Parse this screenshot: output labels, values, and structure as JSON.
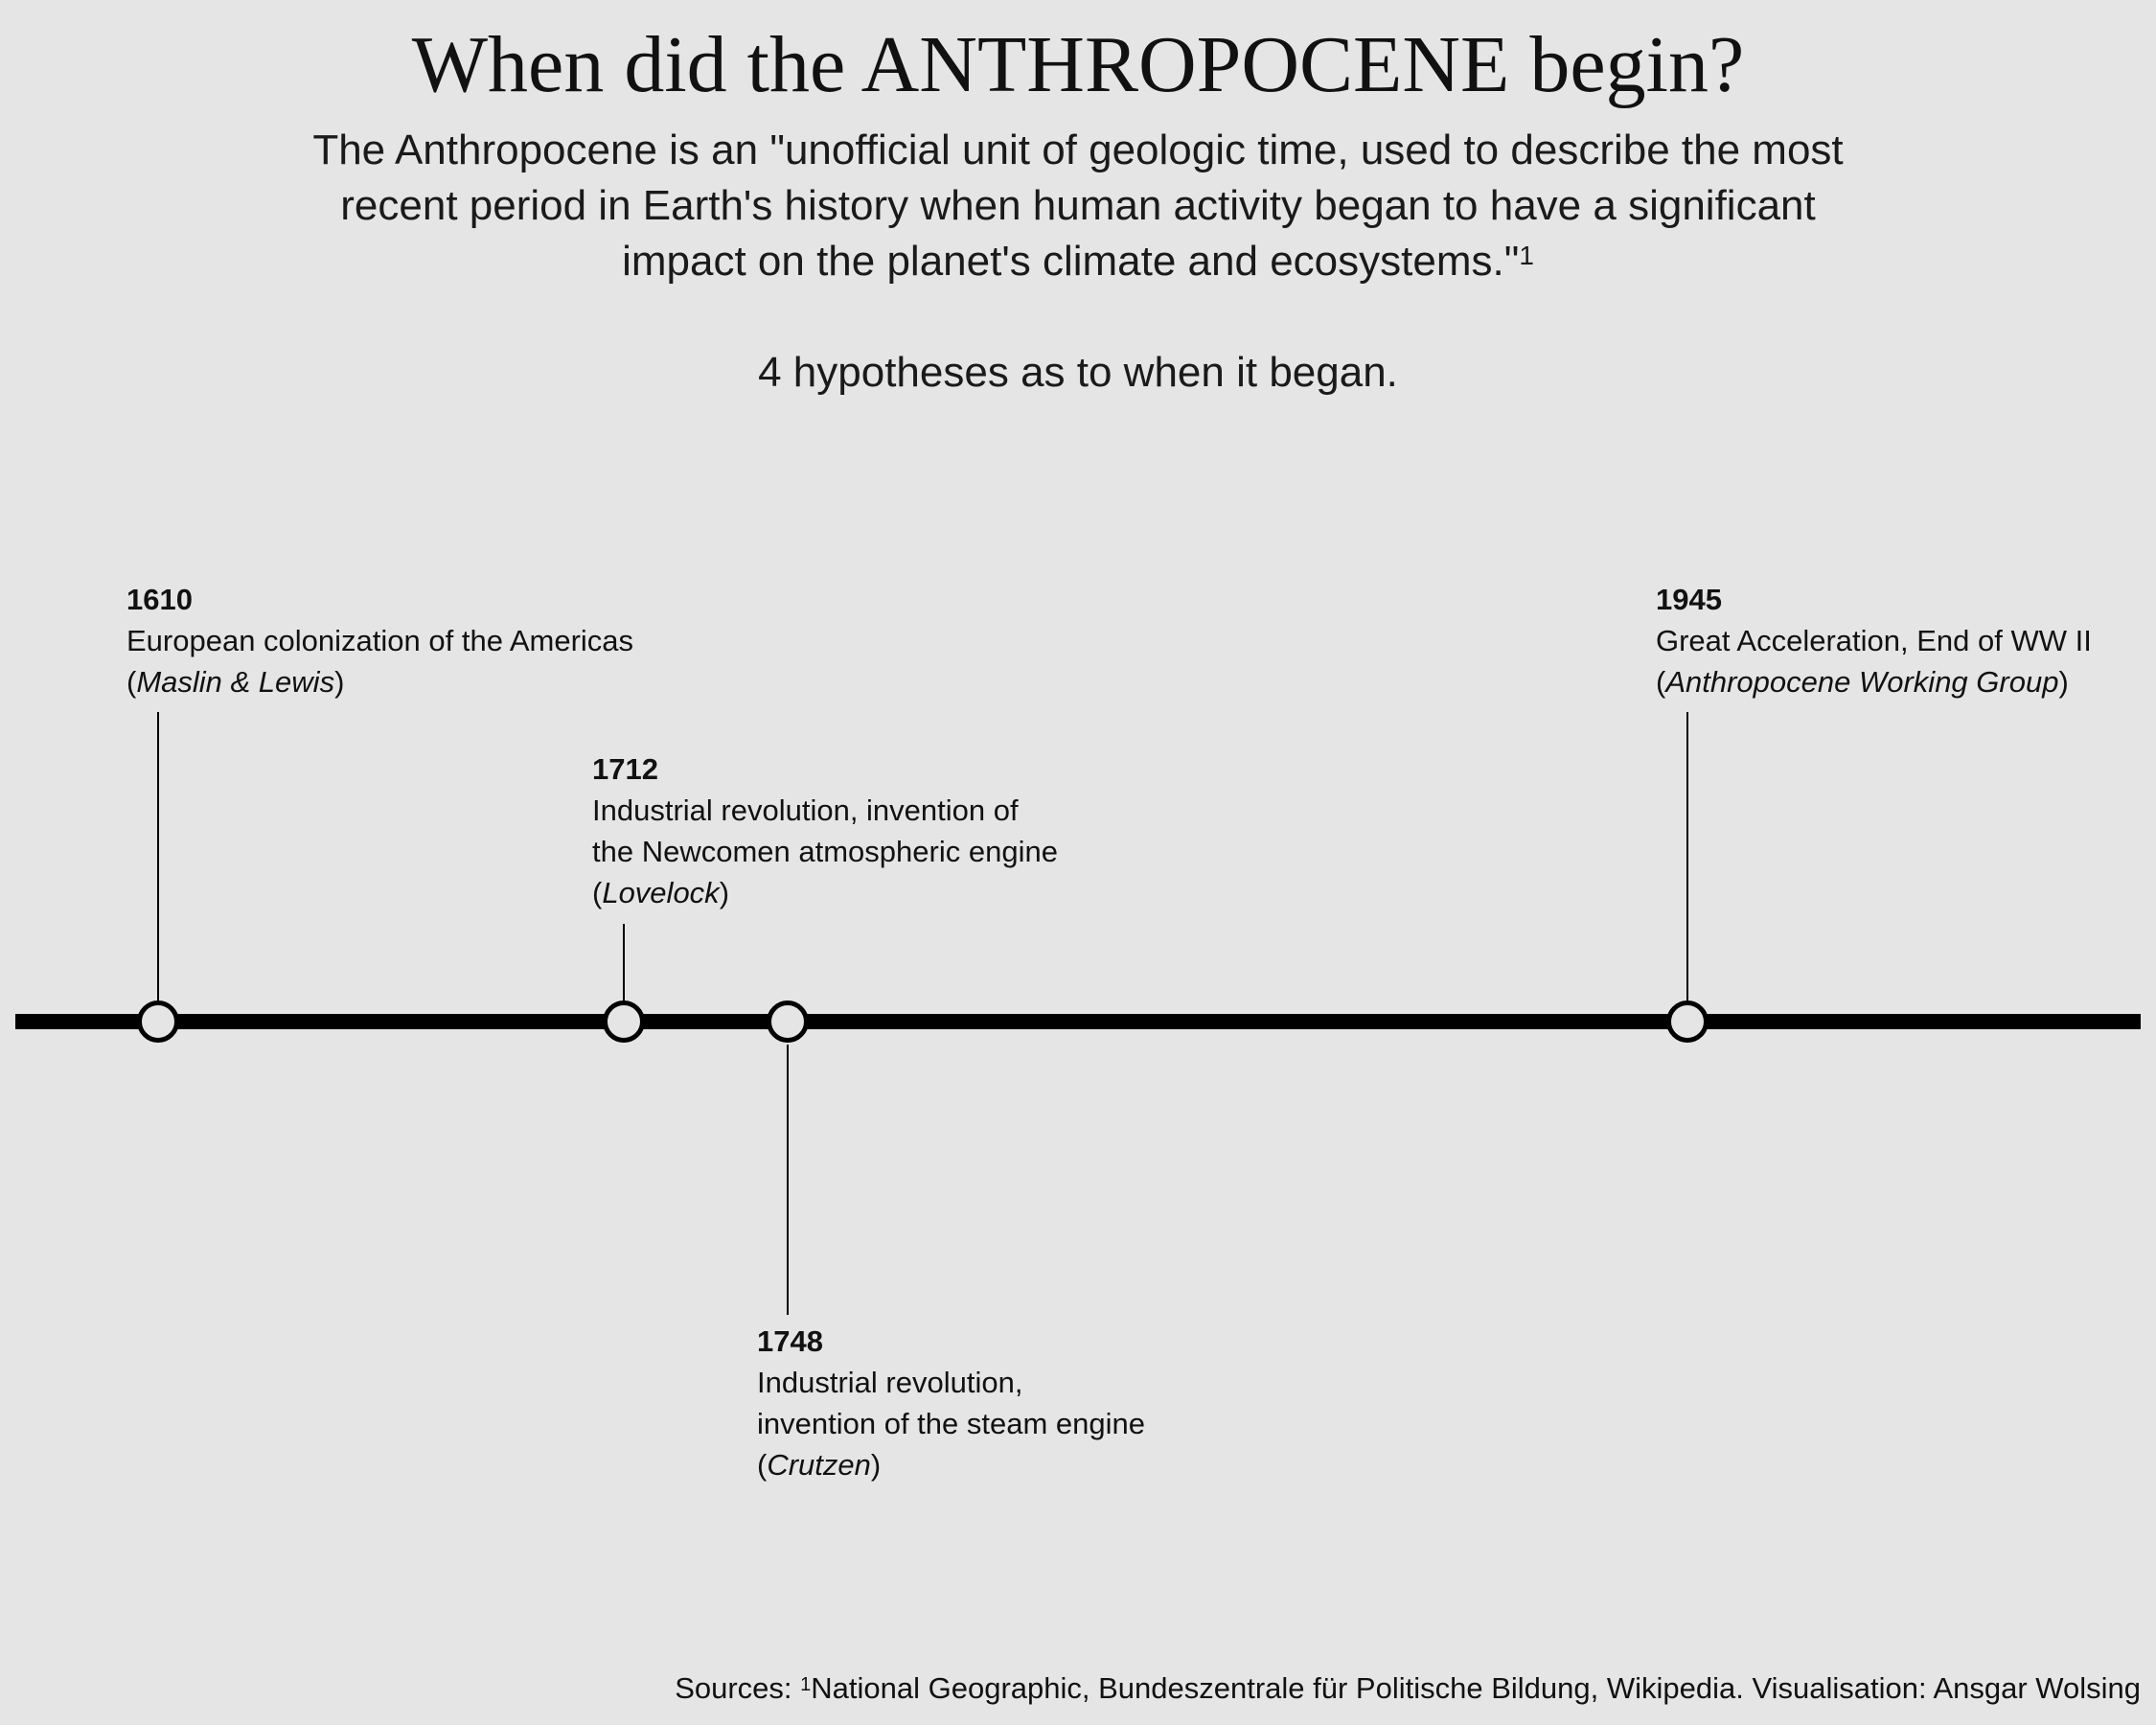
{
  "title": "When did the ANTHROPOCENE begin?",
  "subtitle": {
    "lines": [
      "The Anthropocene is an \"unofficial unit of geologic time, used to describe the most",
      "recent period in Earth's history when human activity began to have a significant",
      "impact on the planet's climate and ecosystems.\""
    ],
    "footnote_marker": "1"
  },
  "subhead": "4 hypotheses as to when it began.",
  "timeline": {
    "events": [
      {
        "year": "1610",
        "lines": [
          "European colonization of the Americas"
        ],
        "source": "Maslin & Lewis"
      },
      {
        "year": "1712",
        "lines": [
          "Industrial revolution, invention of",
          "the Newcomen atmospheric engine"
        ],
        "source": "Lovelock"
      },
      {
        "year": "1748",
        "lines": [
          "Industrial revolution,",
          "invention of the steam engine"
        ],
        "source": "Crutzen"
      },
      {
        "year": "1945",
        "lines": [
          "Great Acceleration, End of WW II"
        ],
        "source": "Anthropocene Working Group"
      }
    ]
  },
  "footer": {
    "prefix": "Sources: ",
    "marker": "1",
    "text": "National Geographic, Bundeszentrale für Politische Bildung, Wikipedia. Visualisation: Ansgar Wolsing"
  },
  "colors": {
    "background": "#e5e5e5",
    "line": "#000000",
    "text": "#111111"
  }
}
